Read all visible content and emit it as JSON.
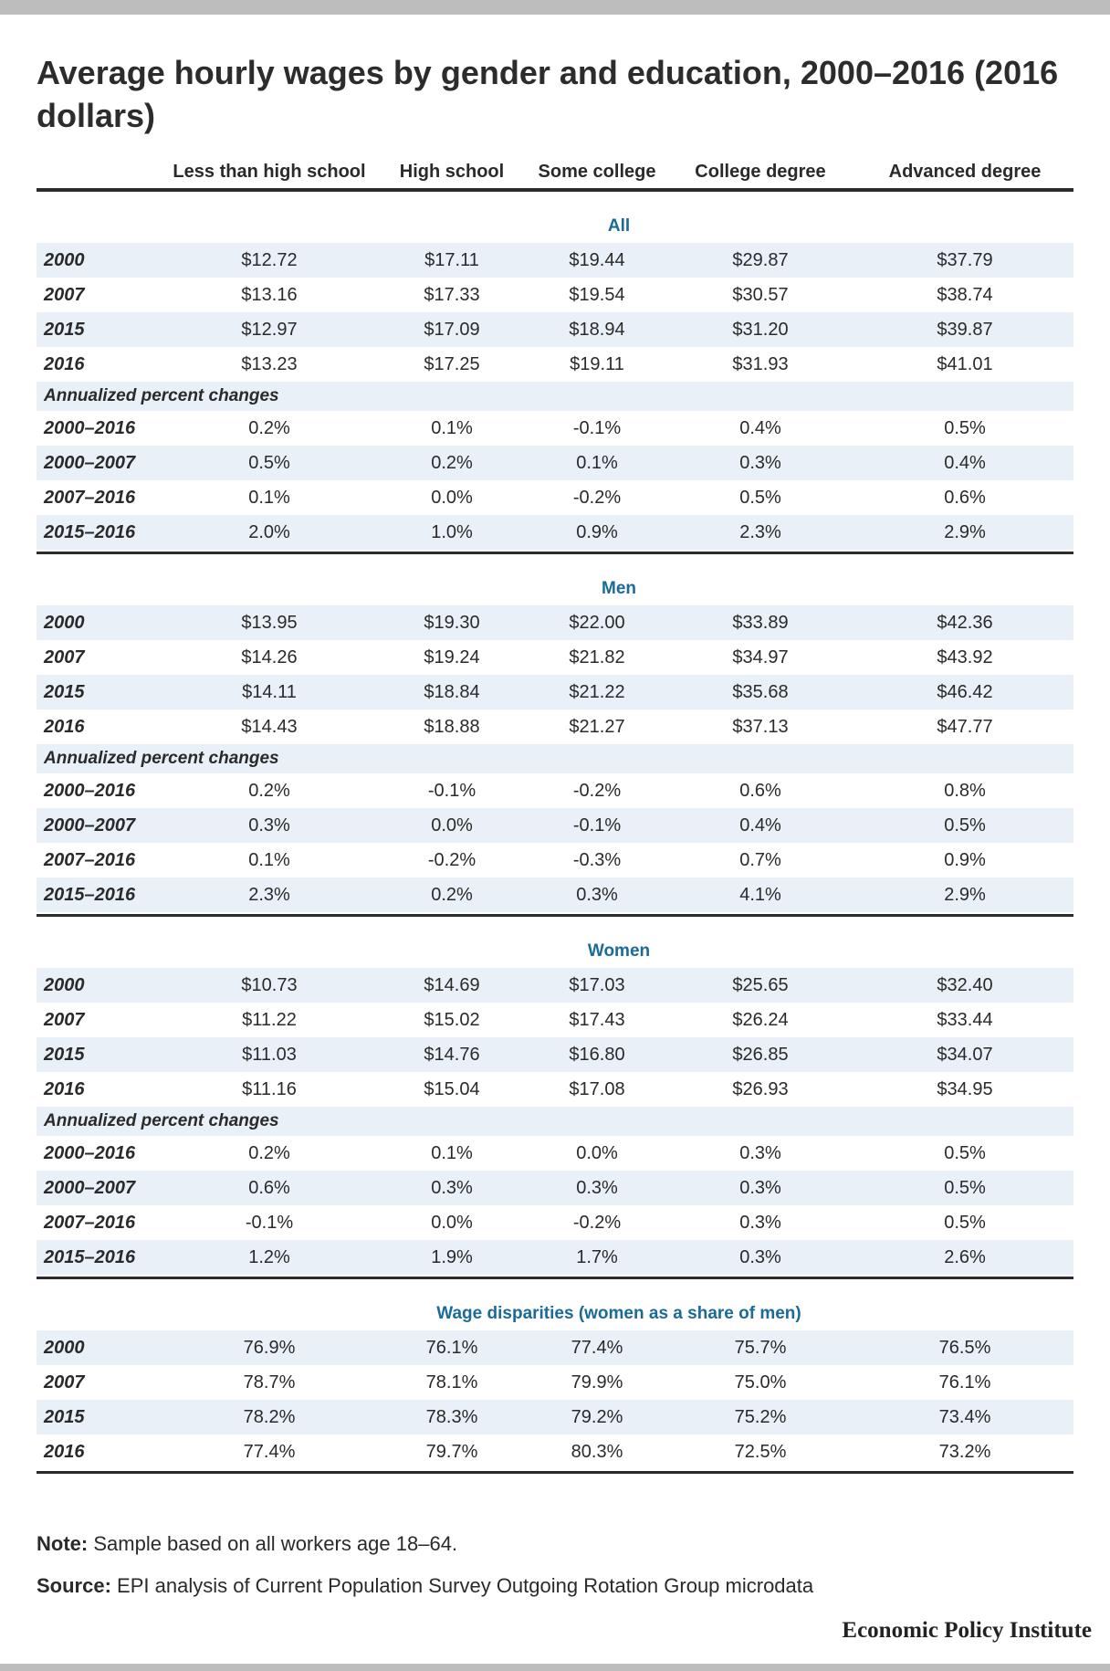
{
  "title": "Average hourly wages by gender and education, 2000–2016 (2016 dollars)",
  "columns": [
    "Less than high school",
    "High school",
    "Some college",
    "College degree",
    "Advanced degree"
  ],
  "sections": [
    {
      "title": "All",
      "rows": [
        {
          "label": "2000",
          "values": [
            "$12.72",
            "$17.11",
            "$19.44",
            "$29.87",
            "$37.79"
          ]
        },
        {
          "label": "2007",
          "values": [
            "$13.16",
            "$17.33",
            "$19.54",
            "$30.57",
            "$38.74"
          ]
        },
        {
          "label": "2015",
          "values": [
            "$12.97",
            "$17.09",
            "$18.94",
            "$31.20",
            "$39.87"
          ]
        },
        {
          "label": "2016",
          "values": [
            "$13.23",
            "$17.25",
            "$19.11",
            "$31.93",
            "$41.01"
          ]
        }
      ],
      "subhead": "Annualized percent changes",
      "change_rows": [
        {
          "label": "2000–2016",
          "values": [
            "0.2%",
            "0.1%",
            "-0.1%",
            "0.4%",
            "0.5%"
          ]
        },
        {
          "label": "2000–2007",
          "values": [
            "0.5%",
            "0.2%",
            "0.1%",
            "0.3%",
            "0.4%"
          ]
        },
        {
          "label": "2007–2016",
          "values": [
            "0.1%",
            "0.0%",
            "-0.2%",
            "0.5%",
            "0.6%"
          ]
        },
        {
          "label": "2015–2016",
          "values": [
            "2.0%",
            "1.0%",
            "0.9%",
            "2.3%",
            "2.9%"
          ]
        }
      ]
    },
    {
      "title": "Men",
      "rows": [
        {
          "label": "2000",
          "values": [
            "$13.95",
            "$19.30",
            "$22.00",
            "$33.89",
            "$42.36"
          ]
        },
        {
          "label": "2007",
          "values": [
            "$14.26",
            "$19.24",
            "$21.82",
            "$34.97",
            "$43.92"
          ]
        },
        {
          "label": "2015",
          "values": [
            "$14.11",
            "$18.84",
            "$21.22",
            "$35.68",
            "$46.42"
          ]
        },
        {
          "label": "2016",
          "values": [
            "$14.43",
            "$18.88",
            "$21.27",
            "$37.13",
            "$47.77"
          ]
        }
      ],
      "subhead": "Annualized percent changes",
      "change_rows": [
        {
          "label": "2000–2016",
          "values": [
            "0.2%",
            "-0.1%",
            "-0.2%",
            "0.6%",
            "0.8%"
          ]
        },
        {
          "label": "2000–2007",
          "values": [
            "0.3%",
            "0.0%",
            "-0.1%",
            "0.4%",
            "0.5%"
          ]
        },
        {
          "label": "2007–2016",
          "values": [
            "0.1%",
            "-0.2%",
            "-0.3%",
            "0.7%",
            "0.9%"
          ]
        },
        {
          "label": "2015–2016",
          "values": [
            "2.3%",
            "0.2%",
            "0.3%",
            "4.1%",
            "2.9%"
          ]
        }
      ]
    },
    {
      "title": "Women",
      "rows": [
        {
          "label": "2000",
          "values": [
            "$10.73",
            "$14.69",
            "$17.03",
            "$25.65",
            "$32.40"
          ]
        },
        {
          "label": "2007",
          "values": [
            "$11.22",
            "$15.02",
            "$17.43",
            "$26.24",
            "$33.44"
          ]
        },
        {
          "label": "2015",
          "values": [
            "$11.03",
            "$14.76",
            "$16.80",
            "$26.85",
            "$34.07"
          ]
        },
        {
          "label": "2016",
          "values": [
            "$11.16",
            "$15.04",
            "$17.08",
            "$26.93",
            "$34.95"
          ]
        }
      ],
      "subhead": "Annualized percent changes",
      "change_rows": [
        {
          "label": "2000–2016",
          "values": [
            "0.2%",
            "0.1%",
            "0.0%",
            "0.3%",
            "0.5%"
          ]
        },
        {
          "label": "2000–2007",
          "values": [
            "0.6%",
            "0.3%",
            "0.3%",
            "0.3%",
            "0.5%"
          ]
        },
        {
          "label": "2007–2016",
          "values": [
            "-0.1%",
            "0.0%",
            "-0.2%",
            "0.3%",
            "0.5%"
          ]
        },
        {
          "label": "2015–2016",
          "values": [
            "1.2%",
            "1.9%",
            "1.7%",
            "0.3%",
            "2.6%"
          ]
        }
      ]
    },
    {
      "title": "Wage disparities (women as a share of men)",
      "rows": [
        {
          "label": "2000",
          "values": [
            "76.9%",
            "76.1%",
            "77.4%",
            "75.7%",
            "76.5%"
          ]
        },
        {
          "label": "2007",
          "values": [
            "78.7%",
            "78.1%",
            "79.9%",
            "75.0%",
            "76.1%"
          ]
        },
        {
          "label": "2015",
          "values": [
            "78.2%",
            "78.3%",
            "79.2%",
            "75.2%",
            "73.4%"
          ]
        },
        {
          "label": "2016",
          "values": [
            "77.4%",
            "79.7%",
            "80.3%",
            "72.5%",
            "73.2%"
          ]
        }
      ]
    }
  ],
  "note_label": "Note:",
  "note_text": "Sample based on all workers age 18–64.",
  "source_label": "Source:",
  "source_text": "EPI analysis of Current Population Survey Outgoing Rotation Group microdata",
  "brand": "Economic Policy Institute",
  "colors": {
    "accent": "#1b6a98",
    "shade": "#e9f0f8",
    "rule": "#2b2b2b",
    "bar": "#bdbdbd"
  }
}
